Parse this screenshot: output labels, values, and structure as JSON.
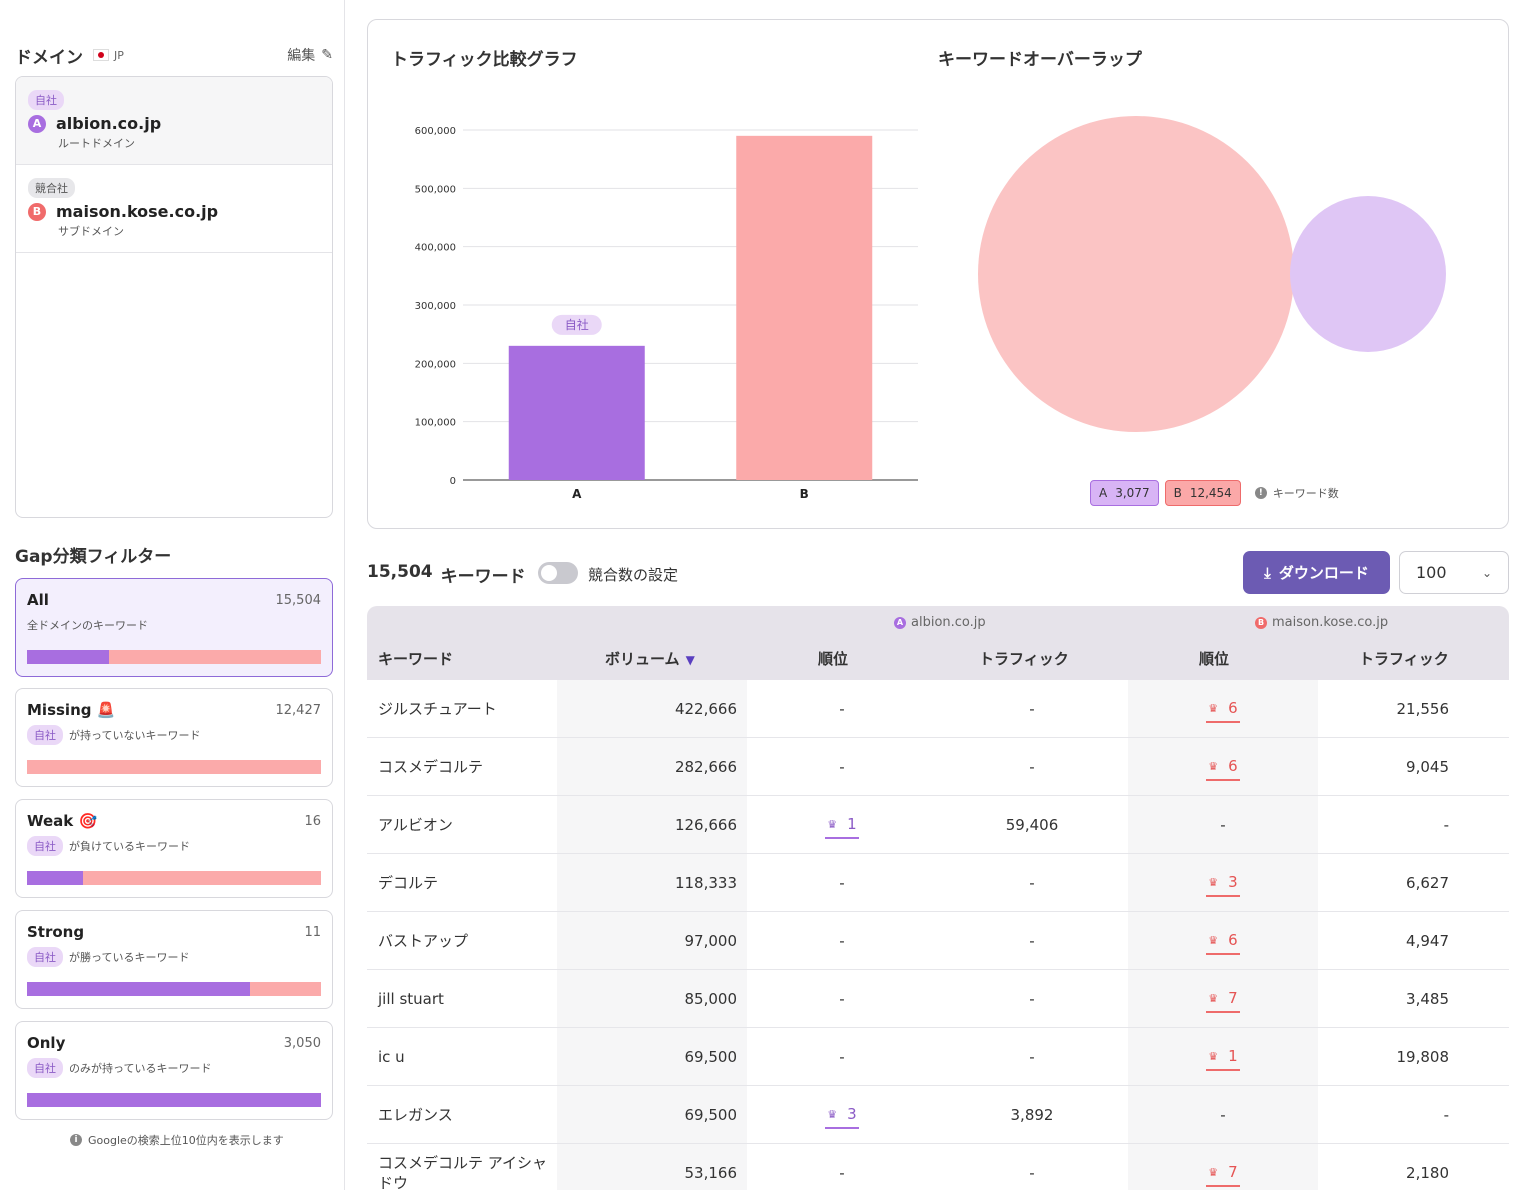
{
  "sidebar": {
    "domain_title": "ドメイン",
    "country": "JP",
    "edit_label": "編集",
    "domains": [
      {
        "tag": "自社",
        "letter": "A",
        "name": "albion.co.jp",
        "type": "ルートドメイン"
      },
      {
        "tag": "競合社",
        "letter": "B",
        "name": "maison.kose.co.jp",
        "type": "サブドメイン"
      }
    ],
    "gap_title": "Gap分類フィルター",
    "gap_tag": "自社",
    "filters": [
      {
        "name": "All",
        "count": "15,504",
        "desc": "全ドメインのキーワード",
        "own_share": 0.28
      },
      {
        "name": "Missing 🚨",
        "count": "12,427",
        "desc": "が持っていないキーワード",
        "own_share": 0.0
      },
      {
        "name": "Weak 🎯",
        "count": "16",
        "desc": "が負けているキーワード",
        "own_share": 0.19
      },
      {
        "name": "Strong",
        "count": "11",
        "desc": "が勝っているキーワード",
        "own_share": 0.76
      },
      {
        "name": "Only",
        "count": "3,050",
        "desc": "のみが持っているキーワード",
        "own_share": 1.0
      }
    ],
    "footnote": "Googleの検索上位10位内を表示します"
  },
  "charts": {
    "traffic_title": "トラフィック比較グラフ",
    "overlap_title": "キーワードオーバーラップ",
    "own_badge": "自社",
    "legend_a": {
      "letter": "A",
      "value": "3,077"
    },
    "legend_b": {
      "letter": "B",
      "value": "12,454"
    },
    "legend_note": "キーワード数",
    "colors": {
      "a": "#a86ee0",
      "b": "#fbaaaa"
    }
  },
  "chart_data": {
    "type": "bar",
    "categories": [
      "A",
      "B"
    ],
    "values": [
      230000,
      590000
    ],
    "ylim": [
      0,
      600000
    ],
    "yticks": [
      "0",
      "100,000",
      "200,000",
      "300,000",
      "400,000",
      "500,000",
      "600,000"
    ],
    "grid": true
  },
  "toolbar": {
    "count": "15,504",
    "count_label": "キーワード",
    "toggle_label": "競合数の設定",
    "download_label": "ダウンロード",
    "page_size": "100"
  },
  "table": {
    "group_a": "albion.co.jp",
    "group_b": "maison.kose.co.jp",
    "headers": {
      "keyword": "キーワード",
      "volume": "ボリューム",
      "rank": "順位",
      "traffic": "トラフィック"
    },
    "rows": [
      {
        "keyword": "ジルスチュアート",
        "volume": "422,666",
        "rank_a": "-",
        "traffic_a": "-",
        "rank_b": "6",
        "traffic_b": "21,556"
      },
      {
        "keyword": "コスメデコルテ",
        "volume": "282,666",
        "rank_a": "-",
        "traffic_a": "-",
        "rank_b": "6",
        "traffic_b": "9,045"
      },
      {
        "keyword": "アルビオン",
        "volume": "126,666",
        "rank_a": "1",
        "traffic_a": "59,406",
        "rank_b": "-",
        "traffic_b": "-"
      },
      {
        "keyword": "デコルテ",
        "volume": "118,333",
        "rank_a": "-",
        "traffic_a": "-",
        "rank_b": "3",
        "traffic_b": "6,627"
      },
      {
        "keyword": "バストアップ",
        "volume": "97,000",
        "rank_a": "-",
        "traffic_a": "-",
        "rank_b": "6",
        "traffic_b": "4,947"
      },
      {
        "keyword": "jill stuart",
        "volume": "85,000",
        "rank_a": "-",
        "traffic_a": "-",
        "rank_b": "7",
        "traffic_b": "3,485"
      },
      {
        "keyword": "ic u",
        "volume": "69,500",
        "rank_a": "-",
        "traffic_a": "-",
        "rank_b": "1",
        "traffic_b": "19,808"
      },
      {
        "keyword": "エレガンス",
        "volume": "69,500",
        "rank_a": "3",
        "traffic_a": "3,892",
        "rank_b": "-",
        "traffic_b": "-"
      },
      {
        "keyword": "コスメデコルテ アイシャドウ",
        "volume": "53,166",
        "rank_a": "-",
        "traffic_a": "-",
        "rank_b": "7",
        "traffic_b": "2,180"
      }
    ]
  }
}
